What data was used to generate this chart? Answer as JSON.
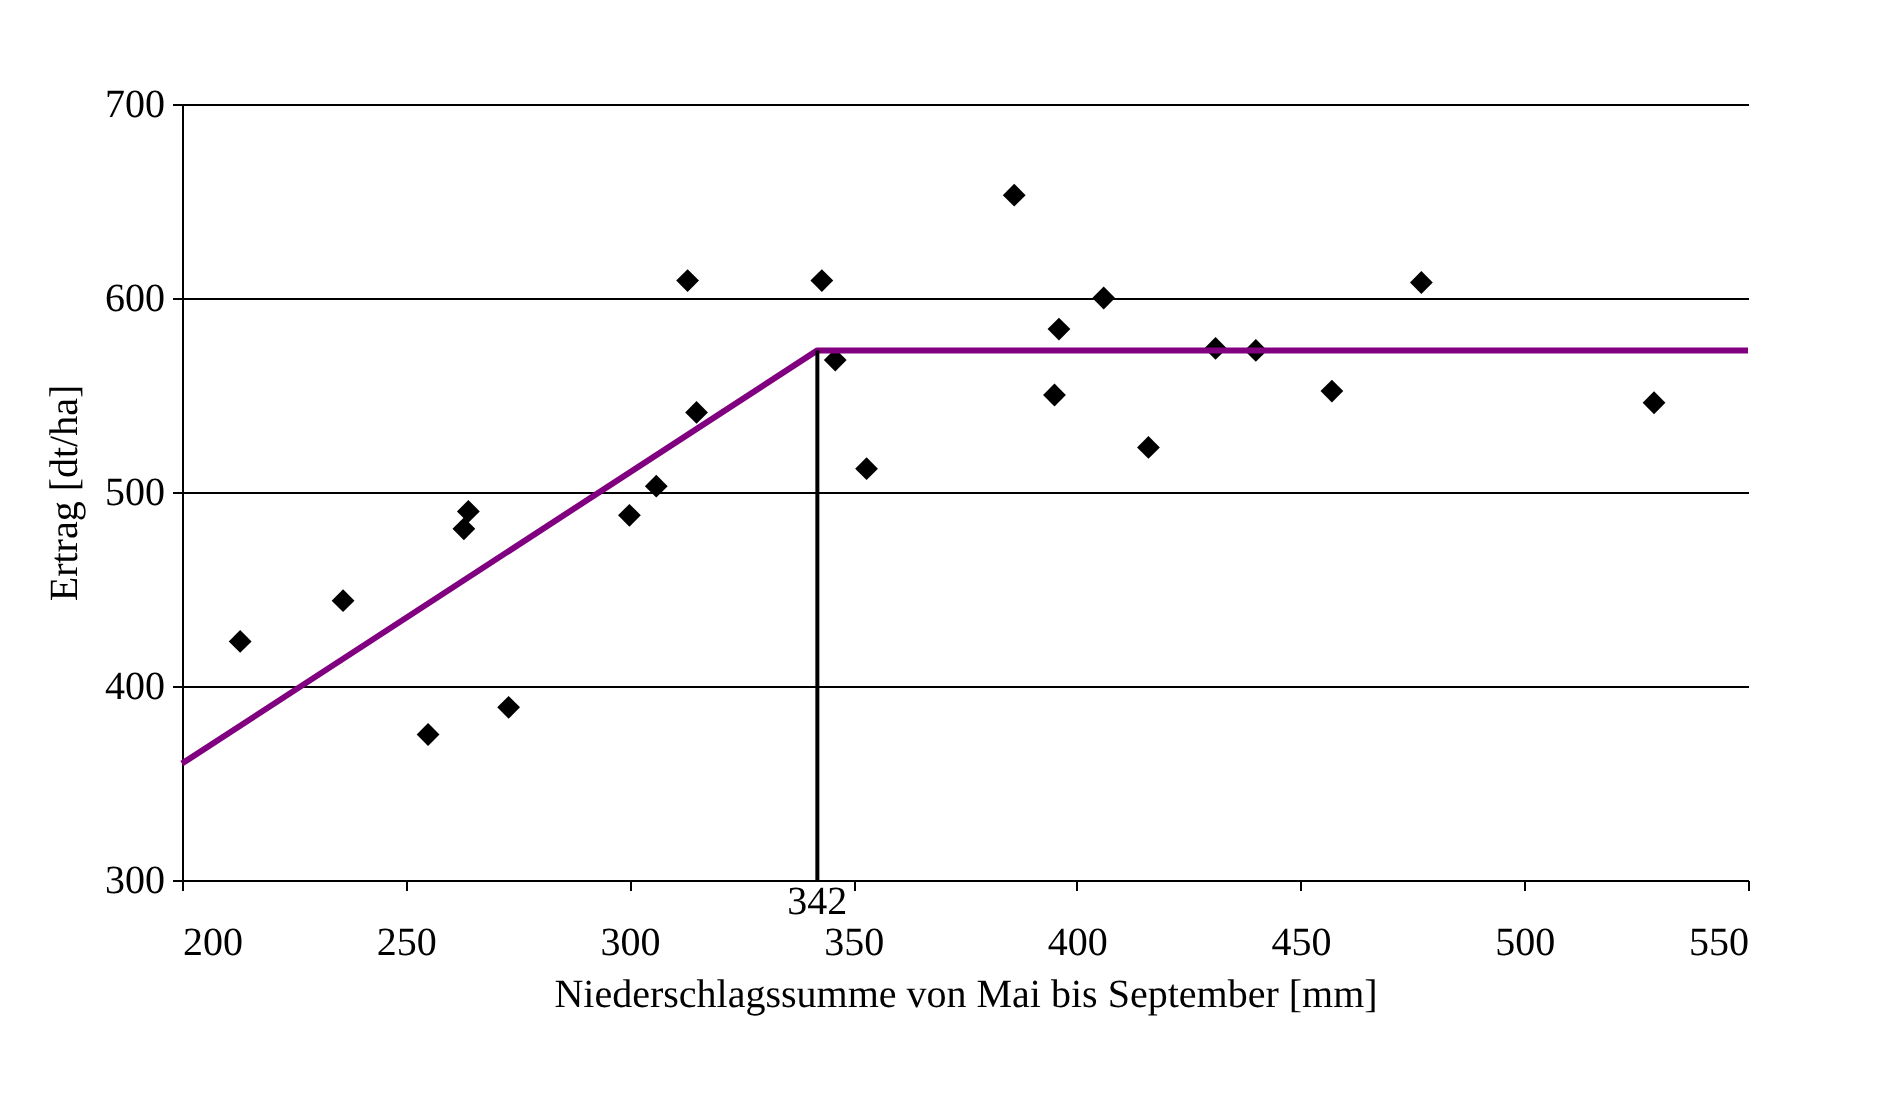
{
  "chart_data": {
    "type": "scatter",
    "xlabel": "Niederschlagssumme von Mai bis September [mm]",
    "ylabel": "Ertrag [dt/ha]",
    "xlim": [
      200,
      550
    ],
    "ylim": [
      300,
      700
    ],
    "xticks": [
      200,
      250,
      300,
      350,
      400,
      450,
      500,
      550
    ],
    "yticks": [
      300,
      400,
      500,
      600,
      700
    ],
    "grid": "y",
    "annotations": [
      {
        "text": "342",
        "x": 342,
        "y": 300
      }
    ],
    "series": [
      {
        "marker": "diamond",
        "color": "#000000",
        "x": [
          213,
          236,
          255,
          263,
          264,
          273,
          300,
          306,
          313,
          315,
          343,
          346,
          353,
          386,
          395,
          396,
          406,
          416,
          431,
          440,
          457,
          477,
          529
        ],
        "values": [
          423,
          444,
          375,
          481,
          490,
          389,
          488,
          503,
          609,
          541,
          609,
          568,
          512,
          653,
          550,
          584,
          600,
          523,
          574,
          573,
          552,
          608,
          546
        ]
      },
      {
        "type": "line",
        "color": "#800080",
        "x": [
          200,
          342,
          550
        ],
        "values": [
          360,
          573,
          573
        ]
      },
      {
        "type": "line",
        "color": "#000000",
        "x": [
          342,
          342
        ],
        "values": [
          300,
          573
        ]
      }
    ]
  }
}
